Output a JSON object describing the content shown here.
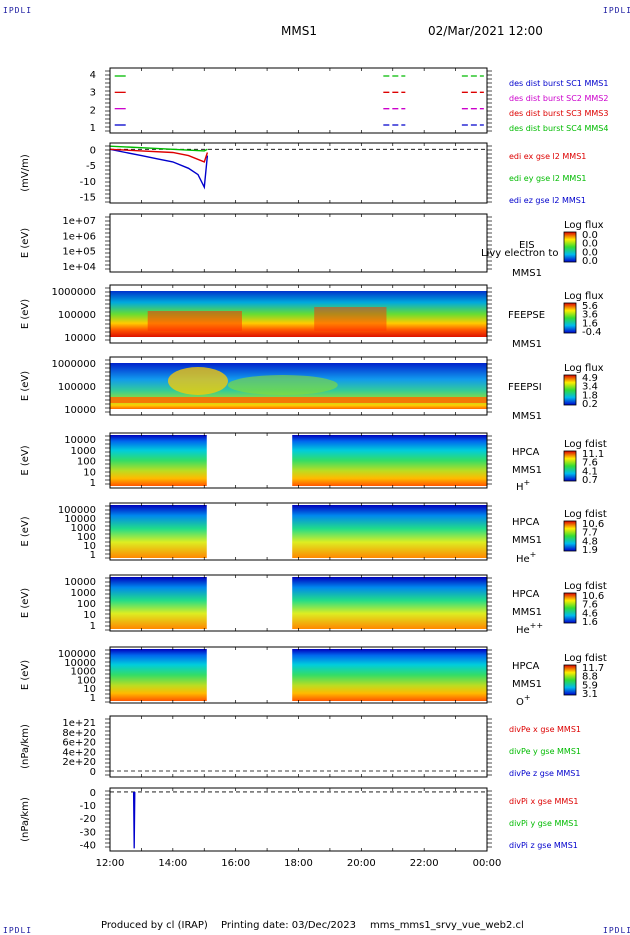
{
  "header": {
    "corner_left": "IPDLI",
    "corner_right": "IPDLI",
    "title": "MMS1",
    "datetime": "02/Mar/2021 12:00"
  },
  "footer": {
    "produced_by": "Produced by cl (IRAP)",
    "printing_date": "Printing date: 03/Dec/2023",
    "script": "mms_mms1_srvy_vue_web2.cl",
    "corner_left": "IPDLI",
    "corner_right": "IPDLI"
  },
  "colors": {
    "blue": "#0000cc",
    "red": "#dd0000",
    "magenta": "#cc00cc",
    "green": "#00bb00"
  },
  "chart_data": {
    "type": "line",
    "time_axis": {
      "ticks": [
        "12:00",
        "14:00",
        "16:00",
        "18:00",
        "20:00",
        "22:00",
        "00:00"
      ],
      "range_hours": [
        12,
        24
      ]
    },
    "panels": [
      {
        "id": "burst",
        "ylabel": "",
        "yticks": [
          "4",
          "3",
          "2",
          "1"
        ],
        "legend": [
          {
            "text": "des dist burst SC1 MMS1",
            "color": "#0000cc"
          },
          {
            "text": "des dist burst SC2 MMS2",
            "color": "#cc00cc"
          },
          {
            "text": "des dist burst SC3 MMS3",
            "color": "#dd0000"
          },
          {
            "text": "des dist burst SC4 MMS4",
            "color": "#00bb00"
          }
        ],
        "series": [
          {
            "level": 4,
            "color": "#00bb00",
            "intervals": [
              [
                12.15,
                12.5
              ],
              [
                20.7,
                21.4
              ],
              [
                23.2,
                23.9
              ]
            ]
          },
          {
            "level": 3,
            "color": "#dd0000",
            "intervals": [
              [
                12.15,
                12.5
              ],
              [
                20.7,
                21.4
              ],
              [
                23.2,
                23.9
              ]
            ]
          },
          {
            "level": 2,
            "color": "#cc00cc",
            "intervals": [
              [
                12.15,
                12.5
              ],
              [
                20.7,
                21.4
              ],
              [
                23.2,
                23.9
              ]
            ]
          },
          {
            "level": 1,
            "color": "#0000cc",
            "intervals": [
              [
                12.15,
                12.5
              ],
              [
                20.7,
                21.4
              ],
              [
                23.2,
                23.9
              ]
            ]
          }
        ]
      },
      {
        "id": "edi",
        "ylabel": "(mV/m)",
        "yticks": [
          "0",
          "-5",
          "-10",
          "-15"
        ],
        "ylim": [
          -17,
          2
        ],
        "legend": [
          {
            "text": "edi ex gse l2 MMS1",
            "color": "#dd0000"
          },
          {
            "text": "edi ey gse l2 MMS1",
            "color": "#00bb00"
          },
          {
            "text": "edi ez gse l2 MMS1",
            "color": "#0000cc"
          }
        ],
        "series": [
          {
            "name": "edi ez gse l2 MMS1",
            "color": "#0000cc",
            "x": [
              12.0,
              12.5,
              13.0,
              13.5,
              14.0,
              14.5,
              14.8,
              15.0,
              15.1
            ],
            "y": [
              0,
              -1,
              -2,
              -3,
              -4,
              -6,
              -8,
              -12,
              -2
            ]
          },
          {
            "name": "edi ex gse l2 MMS1",
            "color": "#dd0000",
            "x": [
              12.0,
              13.0,
              14.0,
              14.5,
              15.0,
              15.1
            ],
            "y": [
              0,
              -0.5,
              -1,
              -2,
              -4,
              -1
            ]
          },
          {
            "name": "edi ey gse l2 MMS1",
            "color": "#00bb00",
            "x": [
              12.0,
              13.0,
              14.0,
              15.0,
              15.1
            ],
            "y": [
              1,
              0.5,
              0,
              -0.5,
              0
            ]
          }
        ]
      },
      {
        "id": "eis",
        "type": "heatmap",
        "ylabel": "E (eV)",
        "yticks": [
          "1e+07",
          "1e+06",
          "1e+05",
          "1e+04"
        ],
        "right_labels": [
          "EIS",
          "MMS1"
        ],
        "overlay_text": "Livy electron to",
        "cbar_title": "Log flux",
        "cbar_ticks": [
          "0.0",
          "0.0",
          "0.0",
          "0.0"
        ]
      },
      {
        "id": "feepse",
        "type": "heatmap",
        "ylabel": "E (eV)",
        "yticks": [
          "1000000",
          "100000",
          "10000"
        ],
        "right_labels": [
          "FEEPSE",
          "MMS1"
        ],
        "cbar_title": "Log flux",
        "cbar_ticks": [
          "5.6",
          "3.6",
          "1.6",
          "-0.4"
        ]
      },
      {
        "id": "feepsi",
        "type": "heatmap",
        "ylabel": "E (eV)",
        "yticks": [
          "1000000",
          "100000",
          "10000"
        ],
        "right_labels": [
          "FEEPSI",
          "MMS1"
        ],
        "cbar_title": "Log flux",
        "cbar_ticks": [
          "4.9",
          "3.4",
          "1.8",
          "0.2"
        ]
      },
      {
        "id": "hpca_h",
        "type": "heatmap",
        "ylabel": "E (eV)",
        "yticks": [
          "10000",
          "1000",
          "100",
          "10",
          "1"
        ],
        "right_labels": [
          "HPCA",
          "MMS1",
          "H+"
        ],
        "cbar_title": "Log fdist",
        "cbar_ticks": [
          "11.1",
          "7.6",
          "4.1",
          "0.7"
        ]
      },
      {
        "id": "hpca_he",
        "type": "heatmap",
        "ylabel": "E (eV)",
        "yticks": [
          "100000",
          "10000",
          "1000",
          "100",
          "10",
          "1"
        ],
        "right_labels": [
          "HPCA",
          "MMS1",
          "He+"
        ],
        "cbar_title": "Log fdist",
        "cbar_ticks": [
          "10.6",
          "7.7",
          "4.8",
          "1.9"
        ]
      },
      {
        "id": "hpca_hepp",
        "type": "heatmap",
        "ylabel": "E (eV)",
        "yticks": [
          "10000",
          "1000",
          "100",
          "10",
          "1"
        ],
        "right_labels": [
          "HPCA",
          "MMS1",
          "He++"
        ],
        "cbar_title": "Log fdist",
        "cbar_ticks": [
          "10.6",
          "7.6",
          "4.6",
          "1.6"
        ]
      },
      {
        "id": "hpca_o",
        "type": "heatmap",
        "ylabel": "E (eV)",
        "yticks": [
          "100000",
          "10000",
          "1000",
          "100",
          "10",
          "1"
        ],
        "right_labels": [
          "HPCA",
          "MMS1",
          "O+"
        ],
        "cbar_title": "Log fdist",
        "cbar_ticks": [
          "11.7",
          "8.8",
          "5.9",
          "3.1"
        ]
      },
      {
        "id": "divpe",
        "ylabel": "(nPa/km)",
        "yticks": [
          "1e+21",
          "8e+20",
          "6e+20",
          "4e+20",
          "2e+20",
          "0"
        ],
        "legend": [
          {
            "text": "divPe x gse MMS1",
            "color": "#dd0000"
          },
          {
            "text": "divPe y gse MMS1",
            "color": "#00bb00"
          },
          {
            "text": "divPe z gse MMS1",
            "color": "#0000cc"
          }
        ]
      },
      {
        "id": "divpi",
        "ylabel": "(nPa/km)",
        "yticks": [
          "0",
          "-10",
          "-20",
          "-30",
          "-40"
        ],
        "ylim": [
          -45,
          3
        ],
        "legend": [
          {
            "text": "divPi x gse MMS1",
            "color": "#dd0000"
          },
          {
            "text": "divPi y gse MMS1",
            "color": "#00bb00"
          },
          {
            "text": "divPi z gse MMS1",
            "color": "#0000cc"
          }
        ],
        "series": [
          {
            "name": "divPi z gse MMS1",
            "color": "#0000cc",
            "x": [
              12.75,
              12.77,
              12.79
            ],
            "y": [
              0,
              -43,
              0
            ]
          }
        ]
      }
    ]
  }
}
